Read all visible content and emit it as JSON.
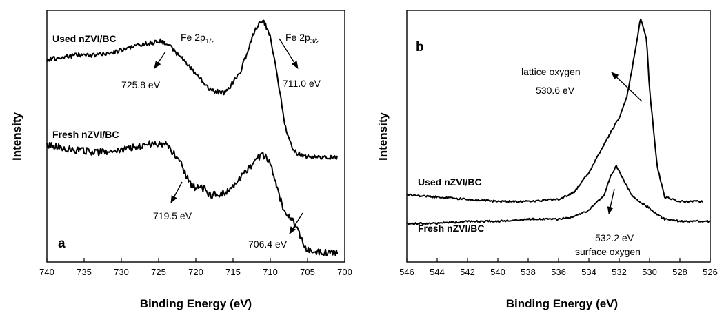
{
  "chart_data": [
    {
      "panel": "a",
      "type": "line",
      "xlabel": "Binding Energy (eV)",
      "ylabel": "Intensity",
      "xlim": [
        740,
        700
      ],
      "x_reversed": true,
      "xticks": [
        740,
        735,
        730,
        725,
        720,
        715,
        710,
        705,
        700
      ],
      "yticks": false,
      "series": [
        {
          "name": "Used nZVI/BC",
          "x": [
            740,
            736,
            733,
            730,
            728,
            726,
            725,
            724,
            722,
            720,
            718,
            716,
            714,
            712,
            711,
            710,
            709,
            708,
            707,
            706,
            705,
            703,
            701
          ],
          "y": [
            0.61,
            0.63,
            0.63,
            0.65,
            0.67,
            0.68,
            0.69,
            0.68,
            0.62,
            0.55,
            0.48,
            0.47,
            0.56,
            0.74,
            0.78,
            0.71,
            0.53,
            0.33,
            0.23,
            0.21,
            0.2,
            0.2,
            0.2
          ]
        },
        {
          "name": "Fresh nZVI/BC",
          "x": [
            740,
            736,
            733,
            730,
            727,
            725,
            724,
            722,
            721,
            720,
            719,
            718,
            716,
            714,
            712,
            711,
            710,
            709,
            708,
            707,
            706,
            705,
            703,
            701
          ],
          "y": [
            0.25,
            0.23,
            0.22,
            0.23,
            0.25,
            0.26,
            0.25,
            0.18,
            0.1,
            0.07,
            0.07,
            0.04,
            0.05,
            0.11,
            0.19,
            0.21,
            0.18,
            0.06,
            -0.04,
            -0.06,
            -0.13,
            -0.19,
            -0.2,
            -0.2
          ]
        }
      ],
      "annotations": [
        {
          "text": "725.8 eV"
        },
        {
          "text": "711.0 eV"
        },
        {
          "text": "719.5 eV"
        },
        {
          "text": "706.4 eV"
        }
      ],
      "peak_labels": [
        {
          "main": "Fe 2p",
          "sub": "1/2"
        },
        {
          "main": "Fe 2p",
          "sub": "3/2"
        }
      ]
    },
    {
      "panel": "b",
      "type": "line",
      "xlabel": "Binding Energy (eV)",
      "ylabel": "Intensity",
      "xlim": [
        546,
        526
      ],
      "x_reversed": true,
      "xticks": [
        546,
        544,
        542,
        540,
        538,
        536,
        534,
        532,
        530,
        528,
        526
      ],
      "yticks": false,
      "series": [
        {
          "name": "Used nZVI/BC",
          "x": [
            546,
            544,
            542,
            540,
            538,
            536,
            535,
            534,
            533,
            532.5,
            532,
            531.5,
            531,
            530.6,
            530.2,
            530,
            529.5,
            529,
            528,
            527,
            526.5
          ],
          "y": [
            0.07,
            0.06,
            0.05,
            0.04,
            0.04,
            0.05,
            0.08,
            0.17,
            0.3,
            0.36,
            0.42,
            0.51,
            0.7,
            0.87,
            0.78,
            0.55,
            0.2,
            0.06,
            0.04,
            0.04,
            0.04
          ]
        },
        {
          "name": "Fresh nZVI/BC",
          "x": [
            546,
            544,
            542,
            540,
            538,
            536,
            535,
            534,
            533,
            532.6,
            532.2,
            531.8,
            531.2,
            530.5,
            530,
            529.5,
            529,
            528,
            527,
            526
          ],
          "y": [
            -0.06,
            -0.06,
            -0.05,
            -0.05,
            -0.04,
            -0.04,
            -0.03,
            0.0,
            0.07,
            0.15,
            0.2,
            0.15,
            0.07,
            0.03,
            0.01,
            -0.02,
            -0.04,
            -0.05,
            -0.05,
            -0.05
          ]
        }
      ],
      "annotations": [
        {
          "text": "lattice oxygen"
        },
        {
          "text": "530.6 eV"
        },
        {
          "text": "532.2 eV"
        },
        {
          "text": "surface oxygen"
        }
      ]
    }
  ]
}
